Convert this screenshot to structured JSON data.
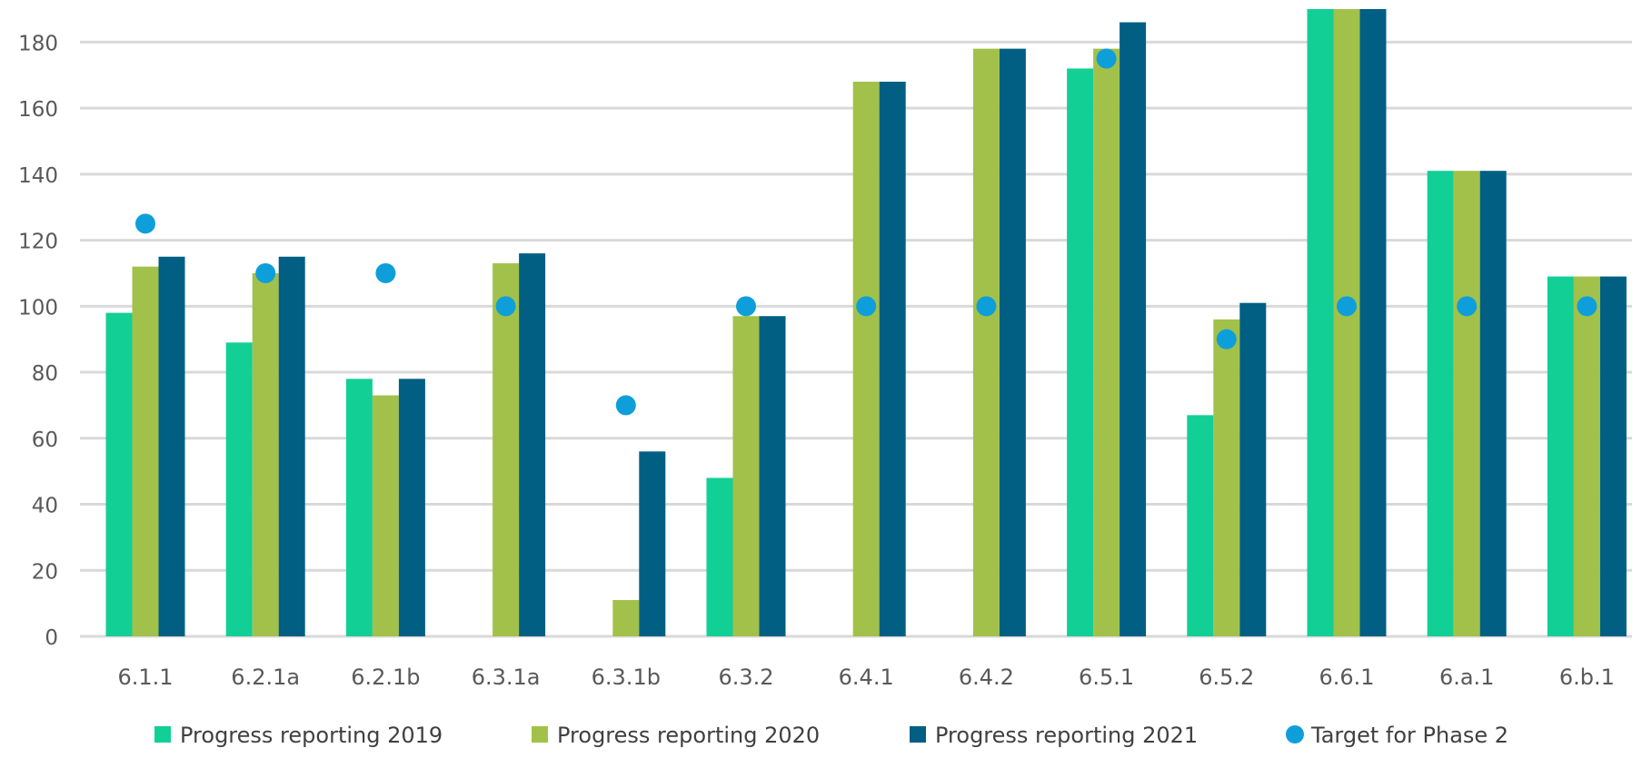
{
  "chart_data": {
    "type": "bar",
    "categories": [
      "6.1.1",
      "6.2.1a",
      "6.2.1b",
      "6.3.1a",
      "6.3.1b",
      "6.3.2",
      "6.4.1",
      "6.4.2",
      "6.5.1",
      "6.5.2",
      "6.6.1",
      "6.a.1",
      "6.b.1"
    ],
    "series": [
      {
        "name": "Progress reporting 2019",
        "type": "bar",
        "color": "#12CF96",
        "values": [
          98,
          89,
          78,
          null,
          null,
          48,
          null,
          null,
          172,
          67,
          190,
          141,
          109
        ]
      },
      {
        "name": "Progress reporting 2020",
        "type": "bar",
        "color": "#A2C14A",
        "values": [
          112,
          110,
          73,
          113,
          11,
          97,
          168,
          178,
          178,
          96,
          190,
          141,
          109
        ]
      },
      {
        "name": "Progress reporting 2021",
        "type": "bar",
        "color": "#005F83",
        "values": [
          115,
          115,
          78,
          116,
          56,
          97,
          168,
          178,
          186,
          101,
          190,
          141,
          109
        ]
      },
      {
        "name": "Target for Phase 2",
        "type": "scatter",
        "color": "#0E9FDB",
        "values": [
          125,
          110,
          110,
          100,
          70,
          100,
          100,
          100,
          175,
          90,
          100,
          100,
          100
        ]
      }
    ],
    "y_ticks": [
      0,
      20,
      40,
      60,
      80,
      100,
      120,
      140,
      160,
      180
    ],
    "ylim": [
      0,
      190
    ],
    "grid": "horizontal",
    "legend_position": "bottom",
    "title": "",
    "xlabel": "",
    "ylabel": ""
  }
}
